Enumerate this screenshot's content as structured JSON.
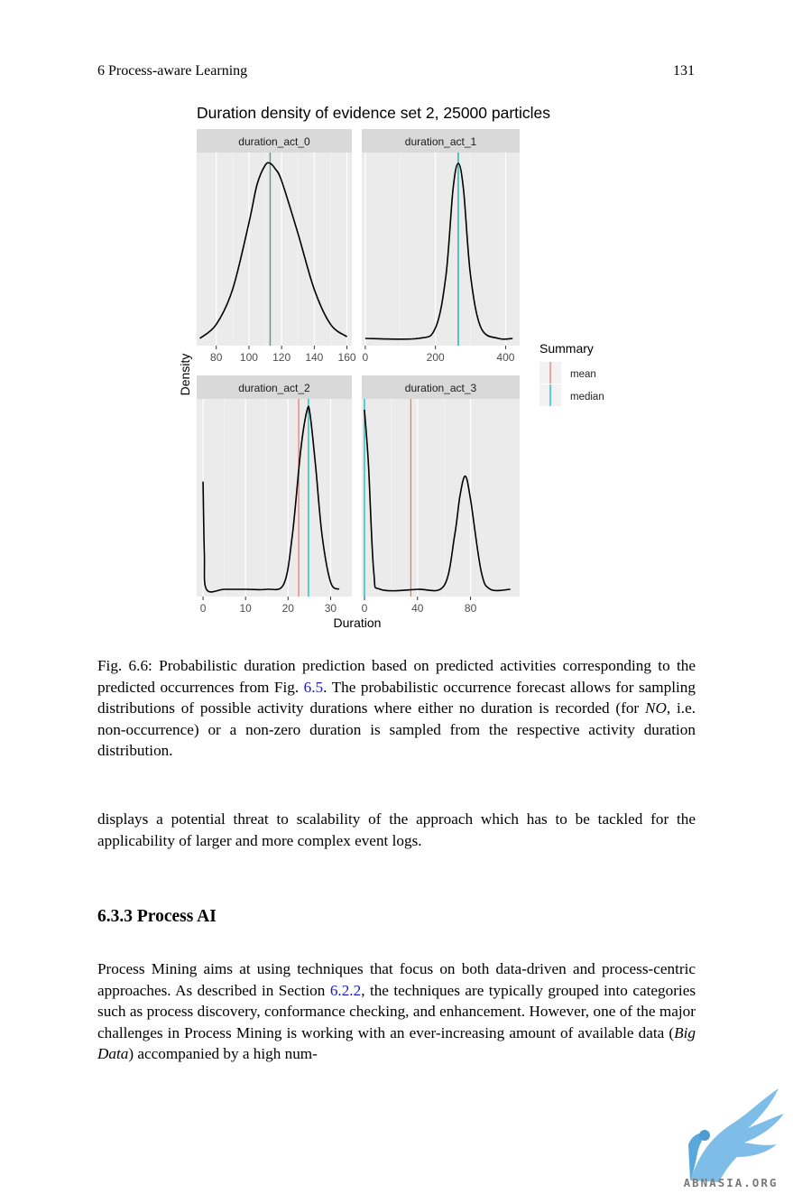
{
  "header": {
    "chapter": "6  Process-aware Learning",
    "page_number": "131"
  },
  "chart_data": {
    "type": "line",
    "title": "Duration density of evidence set 2, 25000 particles",
    "xlabel": "Duration",
    "ylabel": "Density",
    "legend": {
      "title": "Summary",
      "placement": "right",
      "entries": [
        {
          "name": "mean",
          "color": "#F8766D"
        },
        {
          "name": "median",
          "color": "#00BFC4"
        }
      ]
    },
    "panels": [
      {
        "name": "duration_act_0",
        "xlim": [
          68,
          163
        ],
        "xticks": [
          80,
          100,
          120,
          140,
          160
        ],
        "mean": 113,
        "median": 113,
        "series": {
          "x": [
            70,
            80,
            90,
            100,
            105,
            110,
            113,
            116,
            120,
            130,
            140,
            150,
            160
          ],
          "y": [
            0.0,
            0.08,
            0.28,
            0.66,
            0.88,
            0.99,
            1.0,
            0.97,
            0.9,
            0.6,
            0.28,
            0.08,
            0.01
          ]
        }
      },
      {
        "name": "duration_act_1",
        "xlim": [
          -10,
          440
        ],
        "xticks": [
          0,
          200,
          400
        ],
        "mean": 265,
        "median": 265,
        "series": {
          "x": [
            0,
            150,
            200,
            230,
            250,
            265,
            280,
            300,
            330,
            380,
            420
          ],
          "y": [
            0.0,
            0.0,
            0.06,
            0.36,
            0.85,
            1.0,
            0.85,
            0.36,
            0.06,
            0.0,
            0.0
          ]
        }
      },
      {
        "name": "duration_act_2",
        "xlim": [
          -1.5,
          35
        ],
        "xticks": [
          0,
          10,
          20,
          30
        ],
        "mean": 22.5,
        "median": 24.8,
        "series": {
          "x": [
            0,
            0.3,
            0.8,
            5,
            10,
            15,
            19,
            21,
            23,
            24.5,
            25.2,
            26.5,
            28,
            30,
            32
          ],
          "y": [
            0.6,
            0.2,
            0.0,
            0.0,
            0.0,
            0.0,
            0.03,
            0.3,
            0.78,
            1.0,
            0.97,
            0.68,
            0.3,
            0.04,
            0.0
          ]
        }
      },
      {
        "name": "duration_act_3",
        "xlim": [
          -2,
          117
        ],
        "xticks": [
          0,
          40,
          80
        ],
        "mean": 35,
        "median": 0,
        "series": {
          "x": [
            0,
            3,
            7,
            12,
            40,
            60,
            68,
            72,
            76,
            80,
            88,
            95,
            110
          ],
          "y": [
            1.0,
            0.7,
            0.1,
            0.0,
            0.0,
            0.02,
            0.3,
            0.52,
            0.63,
            0.5,
            0.1,
            0.0,
            0.0
          ]
        }
      }
    ]
  },
  "caption": {
    "text": "Fig. 6.6: Probabilistic duration prediction based on predicted activities corresponding to the predicted occurrences from Fig. ",
    "link": "6.5",
    "text2": ". The probabilistic occurrence forecast allows for sampling distributions of possible activity durations where either no duration is recorded (for ",
    "emph": "NO",
    "text3": ", i.e. non-occurrence) or a non-zero duration is sampled from the respective activity duration distribution."
  },
  "paragraph1": "displays a potential threat to scalability of the approach which has to be tackled for the applicability of larger and more complex event logs.",
  "section": {
    "heading": "6.3.3  Process AI"
  },
  "paragraph2": {
    "text1": "Process Mining aims at using techniques that focus on both data-driven and process-centric approaches. As described in Section ",
    "link": "6.2.2",
    "text2": ", the techniques are typically grouped into categories such as process discovery, conformance checking, and enhancement. However, one of the major challenges in Process Mining is working with an ever-increasing amount of available data (",
    "emph": "Big Data",
    "text3": ") accompanied by a high num-"
  },
  "watermark": {
    "text": "ABNASIA.ORG",
    "icon": "griffin-logo"
  }
}
